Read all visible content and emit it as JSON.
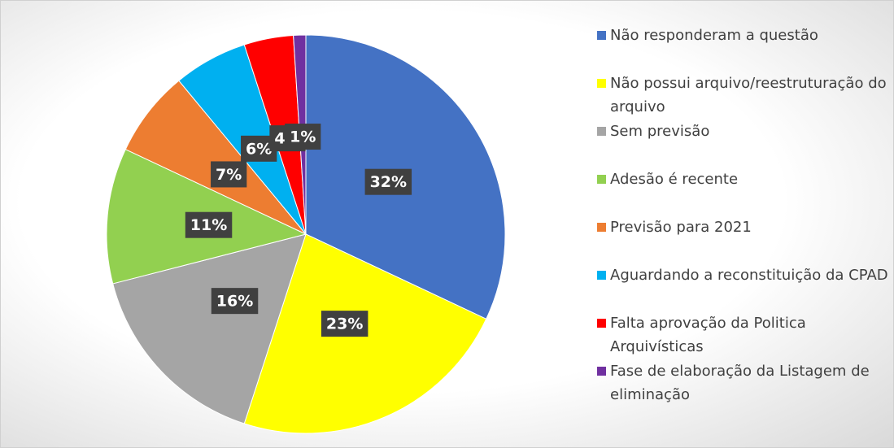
{
  "chart_data": {
    "type": "pie",
    "categories": [
      "Não responderam a questão",
      "Não possui arquivo/reestruturação do arquivo",
      "Sem previsão",
      "Adesão é recente",
      "Previsão para 2021",
      "Aguardando a reconstituição da CPAD",
      "Falta aprovação da Politica Arquivísticas",
      "Fase de elaboração da Listagem de eliminação"
    ],
    "values": [
      32,
      23,
      16,
      11,
      7,
      6,
      4,
      1
    ],
    "value_labels": [
      "32%",
      "23%",
      "16%",
      "11%",
      "7%",
      "6%",
      "4%",
      "1%"
    ],
    "colors": [
      "#4472c4",
      "#ffff00",
      "#a5a5a5",
      "#92d050",
      "#ed7d31",
      "#00b0f0",
      "#ff0000",
      "#7030a0"
    ],
    "legend": "right"
  }
}
